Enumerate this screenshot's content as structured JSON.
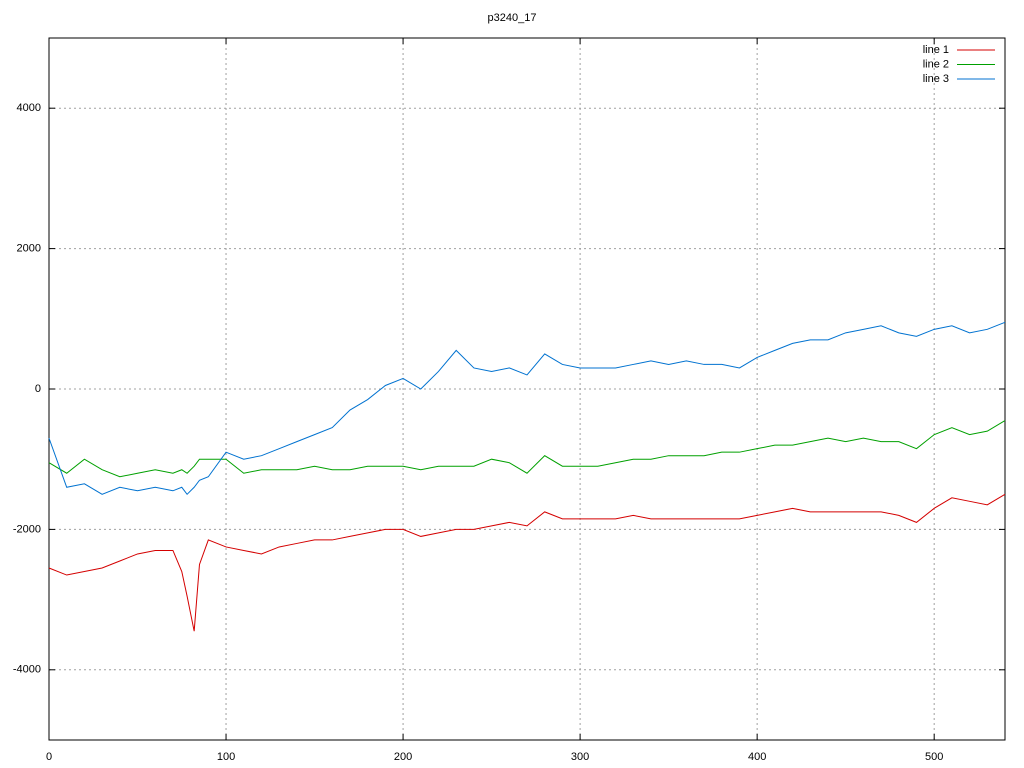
{
  "chart_data": {
    "type": "line",
    "title": "p3240_17",
    "x": [
      0,
      10,
      20,
      30,
      40,
      50,
      60,
      70,
      75,
      78,
      82,
      85,
      90,
      100,
      110,
      120,
      130,
      140,
      150,
      160,
      170,
      180,
      190,
      200,
      210,
      220,
      230,
      240,
      250,
      260,
      270,
      280,
      290,
      300,
      310,
      320,
      330,
      340,
      350,
      360,
      370,
      380,
      390,
      400,
      410,
      420,
      430,
      440,
      450,
      460,
      470,
      480,
      490,
      500,
      510,
      520,
      530,
      540
    ],
    "series": [
      {
        "name": "line 1",
        "color": "#d40000",
        "values": [
          -2550,
          -2650,
          -2600,
          -2550,
          -2450,
          -2350,
          -2300,
          -2300,
          -2600,
          -2950,
          -3450,
          -2500,
          -2150,
          -2250,
          -2300,
          -2350,
          -2250,
          -2200,
          -2150,
          -2150,
          -2100,
          -2050,
          -2000,
          -2000,
          -2100,
          -2050,
          -2000,
          -2000,
          -1950,
          -1900,
          -1950,
          -1750,
          -1850,
          -1850,
          -1850,
          -1850,
          -1800,
          -1850,
          -1850,
          -1850,
          -1850,
          -1850,
          -1850,
          -1800,
          -1750,
          -1700,
          -1750,
          -1750,
          -1750,
          -1750,
          -1750,
          -1800,
          -1900,
          -1700,
          -1550,
          -1600,
          -1650,
          -1500
        ]
      },
      {
        "name": "line 2",
        "color": "#00a000",
        "values": [
          -1050,
          -1200,
          -1000,
          -1150,
          -1250,
          -1200,
          -1150,
          -1200,
          -1150,
          -1200,
          -1100,
          -1000,
          -1000,
          -1000,
          -1200,
          -1150,
          -1150,
          -1150,
          -1100,
          -1150,
          -1150,
          -1100,
          -1100,
          -1100,
          -1150,
          -1100,
          -1100,
          -1100,
          -1000,
          -1050,
          -1200,
          -950,
          -1100,
          -1100,
          -1100,
          -1050,
          -1000,
          -1000,
          -950,
          -950,
          -950,
          -900,
          -900,
          -850,
          -800,
          -800,
          -750,
          -700,
          -750,
          -700,
          -750,
          -750,
          -850,
          -650,
          -550,
          -650,
          -600,
          -450
        ]
      },
      {
        "name": "line 3",
        "color": "#0072d0",
        "values": [
          -700,
          -1400,
          -1350,
          -1500,
          -1400,
          -1450,
          -1400,
          -1450,
          -1400,
          -1500,
          -1400,
          -1300,
          -1250,
          -900,
          -1000,
          -950,
          -850,
          -750,
          -650,
          -550,
          -300,
          -150,
          50,
          150,
          0,
          250,
          550,
          300,
          250,
          300,
          200,
          500,
          350,
          300,
          300,
          300,
          350,
          400,
          350,
          400,
          350,
          350,
          300,
          450,
          550,
          650,
          700,
          700,
          800,
          850,
          900,
          800,
          750,
          850,
          900,
          800,
          850,
          950
        ]
      }
    ],
    "xlim": [
      0,
      540
    ],
    "xticks": [
      0,
      100,
      200,
      300,
      400,
      500
    ],
    "ylim": [
      -5000,
      5000
    ],
    "yticks": [
      -4000,
      -2000,
      0,
      2000,
      4000
    ],
    "grid": true,
    "legend": "top-right"
  }
}
